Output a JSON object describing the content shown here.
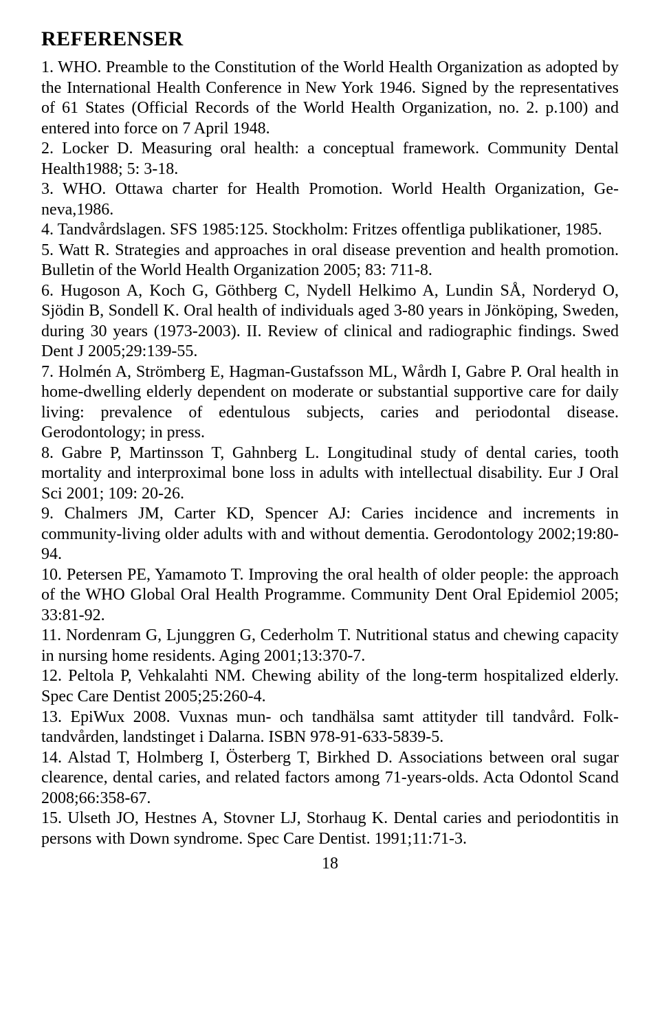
{
  "heading": "REFERENSER",
  "references": [
    "1. WHO. Preamble to the Constitution of the World Health Organization as adopted by the International Health Conference in New York 1946. Signed by the representatives of 61 States (Official Records of the World Health Organiza­tion, no. 2. p.100) and entered into force on 7 April 1948.",
    "2. Locker D. Measuring oral health: a conceptual framework. Community Den­tal Health1988; 5: 3-18.",
    "3. WHO. Ottawa charter for Health Promotion. World Health Organization, Ge­neva,1986.",
    "4. Tandvårdslagen. SFS 1985:125. Stockholm: Fritzes offentliga publikationer, 1985.",
    "5. Watt R. Strategies and approaches in oral disease prevention and health pro­motion. Bulletin of the World Health Organization 2005; 83: 711-8.",
    "6. Hugoson A, Koch G, Göthberg C, Nydell Helkimo A, Lundin SÅ, Norderyd O, Sjödin B, Sondell K. Oral health of individuals aged 3-80 years in Jönkö­ping, Sweden, during 30 years (1973-2003). II. Review of clinical and radio­graphic findings. Swed Dent J 2005;29:139-55.",
    "7. Holmén A, Strömberg E, Hagman-Gustafsson ML, Wårdh I, Gabre P. Oral health in home-dwelling elderly dependent on moderate or substantial suppor­tive care for daily living: prevalence of edentulous subjects, caries and perio­dontal disease. Gerodontology; in press.",
    "8. Gabre P, Martinsson T, Gahnberg L. Longitudinal study of dental caries, tooth mortality and interproximal bone loss in adults with intellectual disability. Eur J Oral Sci 2001; 109: 20-26.",
    "9. Chalmers JM, Carter KD, Spencer AJ: Caries incidence and increments in community-living older adults with and without dementia. Gerodontology 2002;19:80-94.",
    "10. Petersen PE, Yamamoto T. Improving the oral health of older people: the approach of the WHO Global Oral Health Programme. Community Dent Oral Epidemiol 2005; 33:81-92.",
    "11. Nordenram G, Ljunggren G, Cederholm T. Nutritional status and chewing capacity in nursing home residents. Aging 2001;13:370-7.",
    "12. Peltola P, Vehkalahti NM. Chewing ability of the long-term hospitalized elderly. Spec Care Dentist 2005;25:260-4.",
    "13. EpiWux 2008. Vuxnas mun- och tandhälsa samt attityder till tandvård. Folk­tandvården, landstinget i Dalarna. ISBN 978-91-633-5839-5.",
    "14. Alstad T, Holmberg I, Österberg T, Birkhed D. Associations between oral sugar clearence, dental caries, and related factors among 71-years-olds. Acta Odontol Scand 2008;66:358-67.",
    "15. Ulseth JO, Hestnes A, Stovner LJ, Storhaug K. Dental caries and periodon­titis in persons with Down syndrome. Spec Care Dentist. 1991;11:71-3."
  ],
  "page_number": "18"
}
